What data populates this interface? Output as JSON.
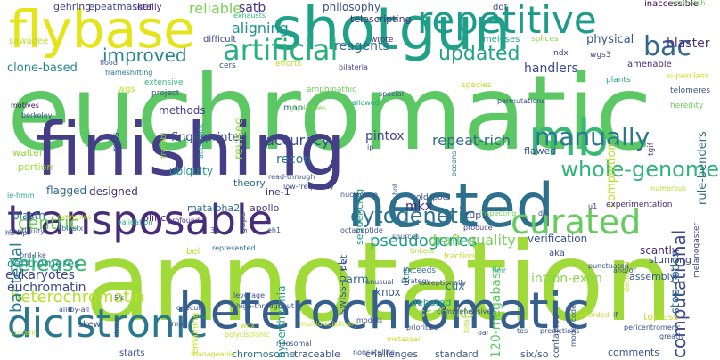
{
  "words": [
    {
      "text": "euchromatic",
      "color": "#5cc863"
    },
    {
      "text": "annotation",
      "color": "#a0da39"
    },
    {
      "text": "finishing",
      "color": "#433e85"
    },
    {
      "text": "heterochromatic",
      "color": "#355f8d"
    },
    {
      "text": "shotgun",
      "color": "#1fa188"
    },
    {
      "text": "transposable",
      "color": "#472c7a"
    },
    {
      "text": "nested",
      "color": "#2d708e"
    },
    {
      "text": "flybase",
      "color": "#e5e419"
    },
    {
      "text": "repetitive",
      "color": "#1e9b8a"
    },
    {
      "text": "mb",
      "color": "#38b977"
    },
    {
      "text": "dicistronic",
      "color": "#2a788e"
    },
    {
      "text": "curated",
      "color": "#65cb5e"
    },
    {
      "text": "manually",
      "color": "#2a788e"
    },
    {
      "text": "cytogenetic",
      "color": "#2c728e"
    },
    {
      "text": "artificial",
      "color": "#2ab07f"
    },
    {
      "text": "bac",
      "color": "#31688e"
    },
    {
      "text": "whole-genome",
      "color": "#2fb47c"
    },
    {
      "text": "computational",
      "color": "#3e4989"
    },
    {
      "text": "release",
      "color": "#3aba76"
    },
    {
      "text": "heterochromatin",
      "color": "#b5de2b"
    },
    {
      "text": "updated",
      "color": "#20a386"
    },
    {
      "text": "improved",
      "color": "#25858e"
    },
    {
      "text": "pseudogenes",
      "color": "#1f9e89"
    },
    {
      "text": "draft-quality",
      "color": "#75d054"
    },
    {
      "text": "centric",
      "color": "#6ece58"
    },
    {
      "text": "reliable",
      "color": "#7ad151"
    },
    {
      "text": "aligning",
      "color": "#20928c"
    },
    {
      "text": "repeat-rich",
      "color": "#31688e"
    },
    {
      "text": "satb",
      "color": "#46337e"
    },
    {
      "text": "blaster",
      "color": "#46337e"
    },
    {
      "text": "physical",
      "color": "#39568c"
    },
    {
      "text": "bacterial",
      "color": "#277f8e"
    },
    {
      "text": "clone-based",
      "color": "#24878e"
    },
    {
      "text": "reagents",
      "color": "#31688e"
    },
    {
      "text": "handlers",
      "color": "#3e4989"
    },
    {
      "text": "euchromatin",
      "color": "#3e4989"
    },
    {
      "text": "eukaryotes",
      "color": "#414487"
    },
    {
      "text": "centromeres",
      "color": "#218f8d"
    },
    {
      "text": "accuracy",
      "color": "#3e4989"
    },
    {
      "text": "pintox",
      "color": "#404688"
    },
    {
      "text": "fingerprinted",
      "color": "#3b528b"
    },
    {
      "text": "recon",
      "color": "#2c728e"
    },
    {
      "text": "completion",
      "color": "#bddf26"
    },
    {
      "text": "rule-benders",
      "color": "#2f6c8e"
    },
    {
      "text": "stop-codon",
      "color": "#2f6c8e"
    },
    {
      "text": "intron-exon",
      "color": "#86d549"
    },
    {
      "text": "revised",
      "color": "#93d741"
    },
    {
      "text": "120-megabase",
      "color": "#5ec962"
    },
    {
      "text": "arm",
      "color": "#2f6c8e"
    },
    {
      "text": "scaffolds",
      "color": "#9bd93c"
    },
    {
      "text": "methods",
      "color": "#424086"
    },
    {
      "text": "knox",
      "color": "#34608d"
    },
    {
      "text": "cux",
      "color": "#2c728e"
    },
    {
      "text": "mkx",
      "color": "#482878"
    },
    {
      "text": "swiss-prot",
      "color": "#39568c"
    },
    {
      "text": "hyperthermia",
      "color": "#1f9a8a"
    },
    {
      "text": "ubiquity",
      "color": "#21918c"
    },
    {
      "text": "blastn",
      "color": "#2c728e"
    },
    {
      "text": "designed",
      "color": "#46327e"
    },
    {
      "text": "flagged",
      "color": "#31688e"
    },
    {
      "text": "portion",
      "color": "#a2da37"
    },
    {
      "text": "walter",
      "color": "#8ed645"
    },
    {
      "text": "debated",
      "color": "#20a486"
    },
    {
      "text": "scantly",
      "color": "#482979"
    },
    {
      "text": "topless",
      "color": "#c2df23"
    },
    {
      "text": "assembly",
      "color": "#38598c"
    },
    {
      "text": "apollo",
      "color": "#453882"
    },
    {
      "text": "matalpha2",
      "color": "#2f6c8e"
    },
    {
      "text": "plinc",
      "color": "#482374"
    },
    {
      "text": "ine-1",
      "color": "#46327e"
    },
    {
      "text": "theory",
      "color": "#31688e"
    },
    {
      "text": "sequencing",
      "color": "#20a386"
    },
    {
      "text": "utrs",
      "color": "#277f8e"
    },
    {
      "text": "tup1",
      "color": "#3e4989"
    },
    {
      "text": "flawed",
      "color": "#39568c"
    },
    {
      "text": "aka",
      "color": "#3b528b"
    },
    {
      "text": "stunning",
      "color": "#3e4989"
    },
    {
      "text": "map",
      "color": "#2c728e"
    },
    {
      "text": "repeatmasker",
      "color": "#3f4889"
    },
    {
      "text": "gehring",
      "color": "#433e85"
    },
    {
      "text": "totally",
      "color": "#481f70"
    },
    {
      "text": "philosophy",
      "color": "#3b528b"
    },
    {
      "text": "telescripting",
      "color": "#472c7a"
    },
    {
      "text": "ddt",
      "color": "#3e4989"
    },
    {
      "text": "inaccessible",
      "color": "#440154"
    },
    {
      "text": "mismatch",
      "color": "#6ece58"
    },
    {
      "text": "exhausts",
      "color": "#35b779"
    },
    {
      "text": "sawadee",
      "color": "#b8de29"
    },
    {
      "text": "difficult",
      "color": "#3e4989"
    },
    {
      "text": "wrote",
      "color": "#46337e"
    },
    {
      "text": "meioses",
      "color": "#22a785"
    },
    {
      "text": "splices",
      "color": "#90d743"
    },
    {
      "text": "ndx",
      "color": "#46327e"
    },
    {
      "text": "wgs3",
      "color": "#3e4989"
    },
    {
      "text": "amenable",
      "color": "#472a7a"
    },
    {
      "text": "superclass",
      "color": "#d0e11c"
    },
    {
      "text": "telomeres",
      "color": "#3b528b"
    },
    {
      "text": "heredity",
      "color": "#6ece58"
    },
    {
      "text": "wgs",
      "color": "#c2df23"
    },
    {
      "text": "flood",
      "color": "#3b528b"
    },
    {
      "text": "frameshifting",
      "color": "#2c728e"
    },
    {
      "text": "cers",
      "color": "#3b528b"
    },
    {
      "text": "efforts",
      "color": "#b8de29"
    },
    {
      "text": "bilateria",
      "color": "#433e85"
    },
    {
      "text": "extensive",
      "color": "#35b779"
    },
    {
      "text": "project",
      "color": "#3b528b"
    },
    {
      "text": "motives",
      "color": "#471063"
    },
    {
      "text": "berkeley",
      "color": "#3b528b"
    },
    {
      "text": "rnas",
      "color": "#3b528b"
    },
    {
      "text": "trembl",
      "color": "#8ed645"
    },
    {
      "text": "automatic",
      "color": "#20a386"
    },
    {
      "text": "amphipathic",
      "color": "#6ece58"
    },
    {
      "text": "guidelines",
      "color": "#7ad151"
    },
    {
      "text": "allowed",
      "color": "#22a785"
    },
    {
      "text": "special",
      "color": "#3b528b"
    },
    {
      "text": "species",
      "color": "#c2df23"
    },
    {
      "text": "plants",
      "color": "#22a785"
    },
    {
      "text": "tgif",
      "color": "#433e85"
    },
    {
      "text": "oceans",
      "color": "#2c728e"
    },
    {
      "text": "permutations",
      "color": "#3b528b"
    },
    {
      "text": "experimentation",
      "color": "#482878"
    },
    {
      "text": "numerous",
      "color": "#b8de29"
    },
    {
      "text": "melanogaster",
      "color": "#3e4989"
    },
    {
      "text": "read-through",
      "color": "#3b528b"
    },
    {
      "text": "low-frequency",
      "color": "#3e4989"
    },
    {
      "text": "hot",
      "color": "#3b528b"
    },
    {
      "text": "nucleotide",
      "color": "#3b528b"
    },
    {
      "text": "coldspots",
      "color": "#3b528b"
    },
    {
      "text": "inspecting",
      "color": "#6ece58"
    },
    {
      "text": "dfs",
      "color": "#3b528b"
    },
    {
      "text": "u1",
      "color": "#482878"
    },
    {
      "text": "ie-hmm",
      "color": "#22a785"
    },
    {
      "text": "validation",
      "color": "#22a785"
    },
    {
      "text": "examples",
      "color": "#c2df23"
    },
    {
      "text": "hd-zip",
      "color": "#3b528b"
    },
    {
      "text": "contiguity",
      "color": "#3b528b"
    },
    {
      "text": "profound",
      "color": "#433e85"
    },
    {
      "text": "produce",
      "color": "#433e85"
    },
    {
      "text": "31",
      "color": "#3b528b"
    },
    {
      "text": "eh1",
      "color": "#3b528b"
    },
    {
      "text": "octapeptide",
      "color": "#3b528b"
    },
    {
      "text": "sources",
      "color": "#3b528b"
    },
    {
      "text": "fraction",
      "color": "#c2df23"
    },
    {
      "text": "verification",
      "color": "#3b528b"
    },
    {
      "text": "prd-like",
      "color": "#3b528b"
    },
    {
      "text": "tinkers",
      "color": "#b8de29"
    },
    {
      "text": "het",
      "color": "#3b528b"
    },
    {
      "text": "tblastx",
      "color": "#2c728e"
    },
    {
      "text": "represented",
      "color": "#2c728e"
    },
    {
      "text": "declared",
      "color": "#b8de29"
    },
    {
      "text": "exceeds",
      "color": "#2c728e"
    },
    {
      "text": "hmr",
      "color": "#22a785"
    },
    {
      "text": "punctuated",
      "color": "#3b528b"
    },
    {
      "text": "contained",
      "color": "#3b528b"
    },
    {
      "text": "total",
      "color": "#b8de29"
    },
    {
      "text": "comprehensive",
      "color": "#3b528b"
    },
    {
      "text": "exceptionally",
      "color": "#3b528b"
    },
    {
      "text": "strategy",
      "color": "#3b528b"
    },
    {
      "text": "unusual",
      "color": "#3b528b"
    },
    {
      "text": "5's",
      "color": "#3b528b"
    },
    {
      "text": "strain",
      "color": "#3b528b"
    },
    {
      "text": "onecut",
      "color": "#3b528b"
    },
    {
      "text": "leverage",
      "color": "#3b528b"
    },
    {
      "text": "high-throughput",
      "color": "#3b528b"
    },
    {
      "text": "remaining",
      "color": "#c2df23"
    },
    {
      "text": "bel",
      "color": "#b8de29"
    },
    {
      "text": "gaps",
      "color": "#3b528b"
    },
    {
      "text": "all-by-all",
      "color": "#3b528b"
    },
    {
      "text": "cmp",
      "color": "#3b528b"
    },
    {
      "text": "wox",
      "color": "#c2df23"
    },
    {
      "text": "multidisciplinary",
      "color": "#c2df23"
    },
    {
      "text": "models",
      "color": "#3b528b"
    },
    {
      "text": "prioritize",
      "color": "#3b528b"
    },
    {
      "text": "oar",
      "color": "#3b528b"
    },
    {
      "text": "predictions",
      "color": "#3b528b"
    },
    {
      "text": "modencode",
      "color": "#3b528b"
    },
    {
      "text": "afforded",
      "color": "#c2df23"
    },
    {
      "text": "if",
      "color": "#3b528b"
    },
    {
      "text": "pericentromeric",
      "color": "#3b528b"
    },
    {
      "text": "greatly",
      "color": "#3b528b"
    },
    {
      "text": "and/or",
      "color": "#3b528b"
    },
    {
      "text": "tes",
      "color": "#3b528b"
    },
    {
      "text": "current",
      "color": "#c2df23"
    },
    {
      "text": "skew",
      "color": "#3b528b"
    },
    {
      "text": "starts",
      "color": "#3b528b"
    },
    {
      "text": "manageable",
      "color": "#c2df23"
    },
    {
      "text": "chromosome",
      "color": "#2c728e"
    },
    {
      "text": "traceable",
      "color": "#3b528b"
    },
    {
      "text": "challenges",
      "color": "#3b528b"
    },
    {
      "text": "standard",
      "color": "#3b528b"
    },
    {
      "text": "six/so",
      "color": "#3b528b"
    },
    {
      "text": "comments",
      "color": "#3b528b"
    },
    {
      "text": "nonsatellite",
      "color": "#3b528b"
    },
    {
      "text": "ribosomal",
      "color": "#3b528b"
    },
    {
      "text": "metazoan",
      "color": "#c2df23"
    },
    {
      "text": "polycistronic",
      "color": "#c2df23"
    },
    {
      "text": "ip",
      "color": "#3b528b"
    },
    {
      "text": "inprocess",
      "color": "#c2df23"
    },
    {
      "text": "irc",
      "color": "#3b528b"
    },
    {
      "text": "downloads",
      "color": "#3b528b"
    }
  ]
}
